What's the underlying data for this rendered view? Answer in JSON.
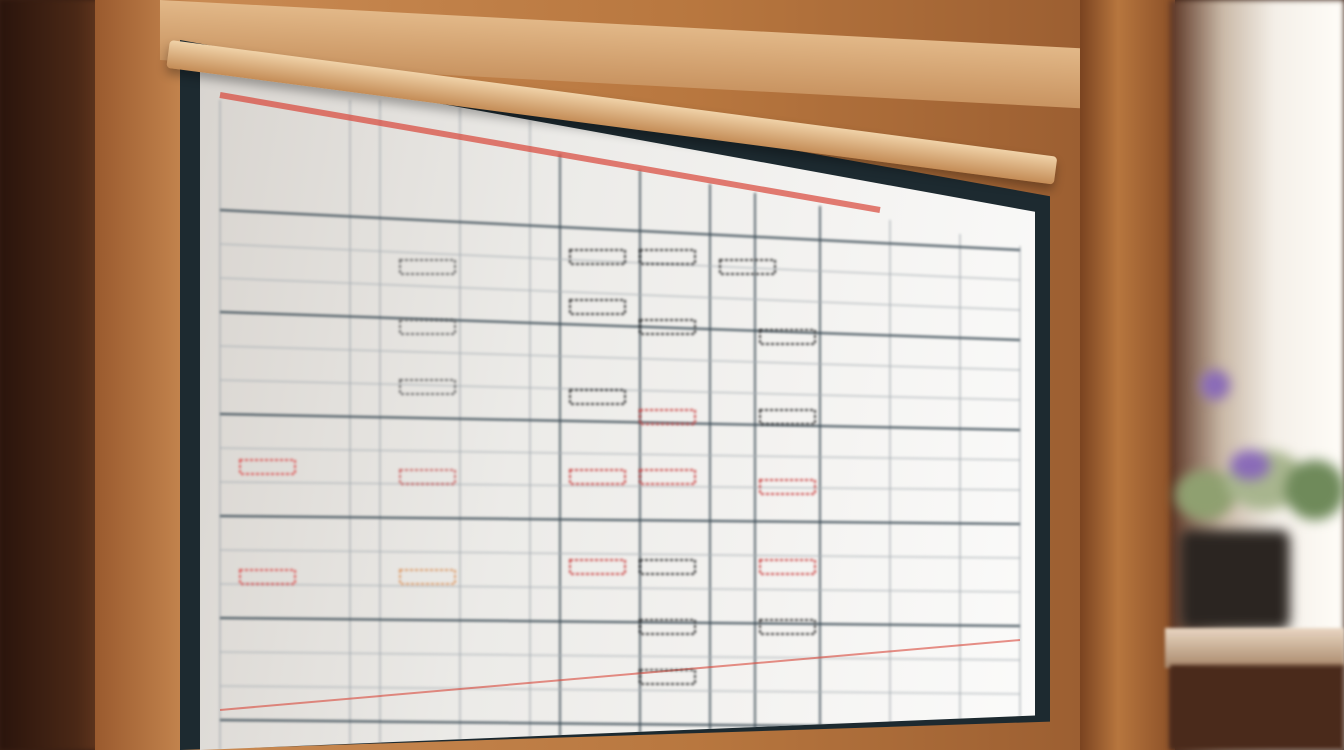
{
  "scene": {
    "subject": "schedule-board",
    "colors": {
      "wood": "#c98a52",
      "board_frame": "#1d2a30",
      "board_surface": "#f0efec",
      "grid_line": "#3d4d57",
      "accent_red": "#d9473a",
      "window_light": "#f4efe8",
      "flower": "#8a6bb8"
    }
  }
}
